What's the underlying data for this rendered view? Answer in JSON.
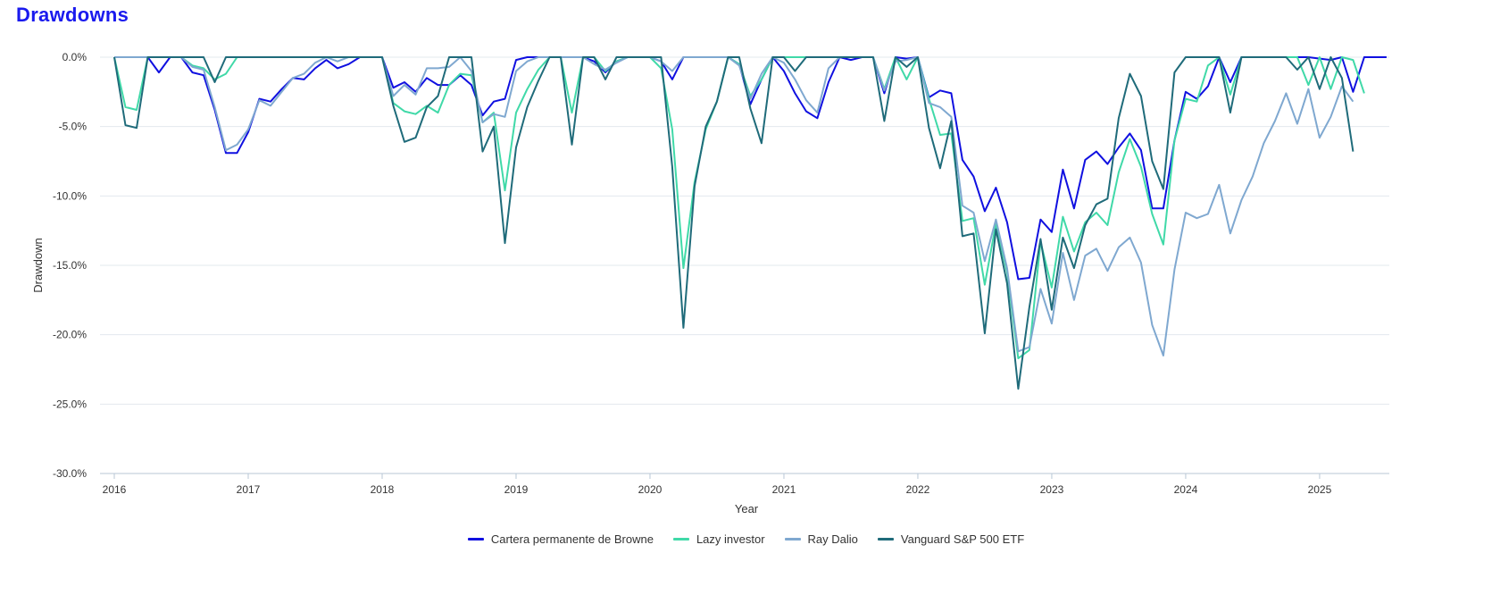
{
  "title": "Drawdowns",
  "chart_data": {
    "type": "line",
    "xlabel": "Year",
    "ylabel": "Drawdown",
    "xlim": [
      2016,
      2025.33
    ],
    "ylim": [
      -30,
      0
    ],
    "x_ticks": [
      "2016",
      "2017",
      "2018",
      "2019",
      "2020",
      "2021",
      "2022",
      "2023",
      "2024",
      "2025"
    ],
    "y_ticks": [
      "0.0%",
      "-5.0%",
      "-10.0%",
      "-15.0%",
      "-20.0%",
      "-25.0%",
      "-30.0%"
    ],
    "y_tick_values": [
      0,
      -5,
      -10,
      -15,
      -20,
      -25,
      -30
    ],
    "grid": true,
    "legend_position": "bottom",
    "series": [
      {
        "name": "Cartera permanente de Browne",
        "color": "#1010e0",
        "values": [
          0,
          0,
          0,
          0,
          -1.1,
          0,
          0,
          -1.1,
          -1.3,
          -3.8,
          -6.9,
          -6.9,
          -5.4,
          -3.0,
          -3.2,
          -2.3,
          -1.5,
          -1.6,
          -0.8,
          -0.2,
          -0.8,
          -0.5,
          0,
          0,
          0,
          -2.2,
          -1.8,
          -2.5,
          -1.5,
          -2.0,
          -2.0,
          -1.3,
          -2.0,
          -4.2,
          -3.2,
          -3.0,
          -0.2,
          0,
          0,
          0,
          0,
          0,
          0,
          -0.3,
          -1.1,
          -0.3,
          0,
          0,
          0,
          -0.3,
          -1.6,
          0,
          0,
          0,
          0,
          0,
          -0.5,
          -3.4,
          -1.6,
          0,
          -1.0,
          -2.6,
          -3.9,
          -4.4,
          -1.8,
          0,
          -0.2,
          0,
          0,
          -2.6,
          0,
          -0.1,
          0,
          -2.9,
          -2.4,
          -2.6,
          -7.4,
          -8.6,
          -11.1,
          -9.4,
          -11.9,
          -16.0,
          -15.9,
          -11.7,
          -12.6,
          -8.1,
          -10.9,
          -7.4,
          -6.8,
          -7.7,
          -6.5,
          -5.5,
          -6.7,
          -10.9,
          -10.9,
          -6.0,
          -2.5,
          -3.0,
          -2.1,
          0,
          -1.8,
          0,
          0,
          0,
          0,
          0,
          0,
          0,
          -0.1,
          -0.2,
          0,
          -2.5,
          0,
          0,
          0
        ],
        "x_start": 2016,
        "x_step": 0.08333
      },
      {
        "name": "Lazy investor",
        "color": "#40d9a8",
        "values": [
          0,
          -3.6,
          -3.8,
          0,
          0,
          0,
          0,
          -0.6,
          -0.8,
          -1.6,
          -1.2,
          0,
          0,
          0,
          0,
          0,
          0,
          0,
          0,
          0,
          0,
          0,
          0,
          0,
          0,
          -3.3,
          -3.9,
          -4.1,
          -3.5,
          -4.0,
          -2.0,
          -1.2,
          -1.3,
          -4.7,
          -4.0,
          -9.6,
          -4.0,
          -2.3,
          -0.9,
          0,
          0,
          -4.0,
          0,
          0,
          -1.0,
          -0.3,
          0,
          0,
          0,
          -0.8,
          -5.2,
          -15.2,
          -9.0,
          -5.2,
          -3.2,
          0,
          -0.5,
          -2.8,
          -1.6,
          0,
          0,
          0,
          0,
          0,
          0,
          0,
          0,
          0,
          0,
          -2.3,
          0,
          -1.6,
          0,
          -3.0,
          -5.6,
          -5.5,
          -11.8,
          -11.6,
          -16.4,
          -12.0,
          -15.5,
          -21.7,
          -21.1,
          -13.3,
          -16.6,
          -11.5,
          -14.0,
          -11.9,
          -11.2,
          -12.1,
          -8.3,
          -5.9,
          -7.9,
          -11.3,
          -13.5,
          -6.0,
          -3.0,
          -3.2,
          -0.6,
          0,
          -2.7,
          0,
          0,
          0,
          0,
          0,
          0,
          -2.0,
          0,
          -2.3,
          0,
          -0.2,
          -2.6
        ],
        "x_start": 2016,
        "x_step": 0.08333
      },
      {
        "name": "Ray Dalio",
        "color": "#7fa8d0",
        "values": [
          0,
          0,
          0,
          0,
          0,
          0,
          0,
          -0.7,
          -0.9,
          -3.6,
          -6.7,
          -6.3,
          -5.2,
          -3.1,
          -3.5,
          -2.5,
          -1.5,
          -1.2,
          -0.4,
          0,
          -0.3,
          0,
          0,
          0,
          0,
          -2.8,
          -2.0,
          -2.7,
          -0.8,
          -0.8,
          -0.7,
          0,
          -1.0,
          -4.7,
          -4.1,
          -4.3,
          -1.0,
          -0.3,
          0,
          0,
          0,
          0,
          0,
          -0.5,
          -0.9,
          -0.4,
          0,
          0,
          0,
          -0.3,
          -1.0,
          0,
          0,
          0,
          0,
          0,
          -0.6,
          -3.0,
          -1.2,
          0,
          -0.4,
          -1.6,
          -3.1,
          -4.0,
          -0.8,
          0,
          0,
          0,
          0,
          -2.4,
          -0.3,
          -0.2,
          0,
          -3.3,
          -3.6,
          -4.3,
          -10.7,
          -11.2,
          -14.7,
          -11.7,
          -15.2,
          -21.2,
          -20.9,
          -16.7,
          -19.2,
          -14.1,
          -17.5,
          -14.3,
          -13.8,
          -15.4,
          -13.7,
          -13.0,
          -14.8,
          -19.3,
          -21.5,
          -15.3,
          -11.2,
          -11.6,
          -11.3,
          -9.2,
          -12.7,
          -10.3,
          -8.6,
          -6.2,
          -4.6,
          -2.6,
          -4.8,
          -2.3,
          -5.8,
          -4.3,
          -2.1,
          -3.2
        ],
        "x_start": 2016,
        "x_step": 0.08333
      },
      {
        "name": "Vanguard S&P 500 ETF",
        "color": "#1f6b7a",
        "values": [
          0,
          -4.9,
          -5.1,
          0,
          0,
          0,
          0,
          0,
          0,
          -1.8,
          0,
          0,
          0,
          0,
          0,
          0,
          0,
          0,
          0,
          0,
          0,
          0,
          0,
          0,
          0,
          -3.5,
          -6.1,
          -5.8,
          -3.6,
          -2.8,
          0,
          0,
          0,
          -6.8,
          -5.0,
          -13.4,
          -6.5,
          -3.6,
          -1.7,
          0,
          0,
          -6.3,
          0,
          0,
          -1.6,
          0,
          0,
          0,
          0,
          0,
          -7.9,
          -19.5,
          -9.3,
          -5.0,
          -3.2,
          0,
          0,
          -3.7,
          -6.2,
          0,
          0,
          -1.0,
          0,
          0,
          0,
          0,
          0,
          0,
          0,
          -4.6,
          0,
          -0.7,
          0,
          -5.1,
          -8.0,
          -4.6,
          -12.9,
          -12.7,
          -19.9,
          -12.4,
          -16.3,
          -23.9,
          -18.0,
          -13.1,
          -18.2,
          -13.0,
          -15.2,
          -12.1,
          -10.6,
          -10.2,
          -4.4,
          -1.2,
          -2.8,
          -7.5,
          -9.5,
          -1.1,
          0,
          0,
          0,
          0,
          -4.0,
          0,
          0,
          0,
          0,
          0,
          -0.9,
          0,
          -2.3,
          0,
          -1.5,
          -6.8
        ],
        "x_start": 2016,
        "x_step": 0.08333
      }
    ]
  }
}
